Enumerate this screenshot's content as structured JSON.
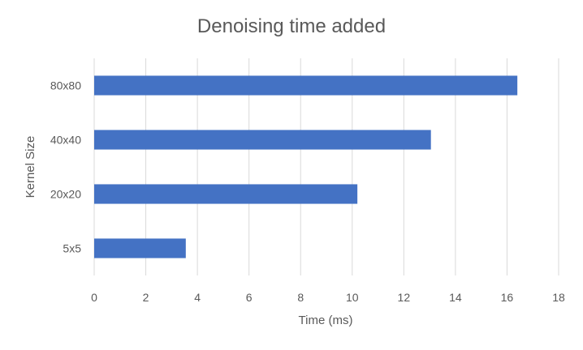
{
  "chart_data": {
    "type": "bar",
    "orientation": "horizontal",
    "title": "Denoising time added",
    "xlabel": "Time (ms)",
    "ylabel": "Kernel Size",
    "categories": [
      "80x80",
      "40x40",
      "20x20",
      "5x5"
    ],
    "values": [
      16.4,
      13.05,
      10.2,
      3.55
    ],
    "xlim": [
      0,
      18
    ],
    "xticks": [
      "0",
      "2",
      "4",
      "6",
      "8",
      "10",
      "12",
      "14",
      "16",
      "18"
    ],
    "grid": "vertical",
    "legend": "none",
    "bar_color": "#4472C4",
    "grid_color": "#D9D9D9"
  }
}
